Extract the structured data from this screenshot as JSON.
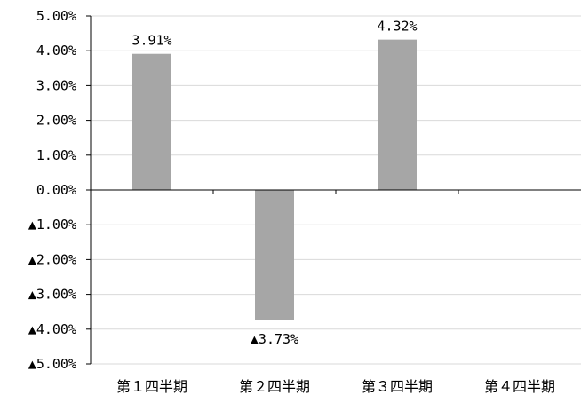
{
  "chart_data": {
    "type": "bar",
    "title": "",
    "xlabel": "",
    "ylabel": "",
    "categories": [
      "第１四半期",
      "第２四半期",
      "第３四半期",
      "第４四半期"
    ],
    "values": [
      3.91,
      -3.73,
      4.32,
      null
    ],
    "data_labels": [
      "3.91%",
      "▲3.73%",
      "4.32%",
      ""
    ],
    "ylim": [
      -5,
      5
    ],
    "y_ticks": [
      5,
      4,
      3,
      2,
      1,
      0,
      -1,
      -2,
      -3,
      -4,
      -5
    ],
    "y_tick_labels": [
      "5.00%",
      "4.00%",
      "3.00%",
      "2.00%",
      "1.00%",
      "0.00%",
      "▲1.00%",
      "▲2.00%",
      "▲3.00%",
      "▲4.00%",
      "▲5.00%"
    ],
    "grid": true,
    "legend": "none",
    "colors": {
      "bar": "#a6a6a6",
      "grid": "#d9d9d9",
      "axis": "#000000"
    }
  }
}
